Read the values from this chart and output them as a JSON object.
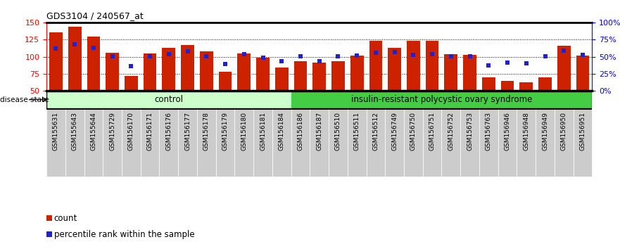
{
  "title": "GDS3104 / 240567_at",
  "samples": [
    "GSM155631",
    "GSM155643",
    "GSM155644",
    "GSM155729",
    "GSM156170",
    "GSM156171",
    "GSM156176",
    "GSM156177",
    "GSM156178",
    "GSM156179",
    "GSM156180",
    "GSM156181",
    "GSM156184",
    "GSM156186",
    "GSM156187",
    "GSM156510",
    "GSM156511",
    "GSM156512",
    "GSM156749",
    "GSM156750",
    "GSM156751",
    "GSM156752",
    "GSM156753",
    "GSM156763",
    "GSM156946",
    "GSM156948",
    "GSM156949",
    "GSM156950",
    "GSM156951"
  ],
  "bar_values": [
    135,
    144,
    129,
    106,
    72,
    105,
    113,
    117,
    108,
    78,
    105,
    99,
    84,
    93,
    91,
    93,
    102,
    123,
    113,
    123,
    123,
    104,
    103,
    70,
    65,
    63,
    70,
    116,
    102
  ],
  "pct_y_values": [
    112,
    118,
    113,
    101,
    86,
    101,
    104,
    108,
    101,
    89,
    104,
    99,
    93,
    101,
    93,
    101,
    102,
    106,
    107,
    103,
    104,
    101,
    101,
    87,
    91,
    90,
    101,
    109,
    103
  ],
  "n_control": 13,
  "n_total": 29,
  "ylim_left": [
    50,
    150
  ],
  "yticks_left": [
    50,
    75,
    100,
    125,
    150
  ],
  "ylim_right": [
    0,
    100
  ],
  "yticks_right": [
    0,
    25,
    50,
    75,
    100
  ],
  "ytick_labels_right": [
    "0%",
    "25%",
    "50%",
    "75%",
    "100%"
  ],
  "hgrid_at": [
    75,
    100,
    125
  ],
  "bar_color": "#cc2200",
  "pct_color": "#2222cc",
  "ctrl_color": "#ccffcc",
  "disease_color": "#44cc44",
  "xtick_bg": "#cccccc",
  "bar_width": 0.7,
  "title_fontsize": 9,
  "tick_fontsize": 6.5,
  "axis_fontsize": 8,
  "label_control": "control",
  "label_disease": "insulin-resistant polycystic ovary syndrome",
  "disease_state_label": "disease state",
  "legend_count": "count",
  "legend_pct": "percentile rank within the sample"
}
